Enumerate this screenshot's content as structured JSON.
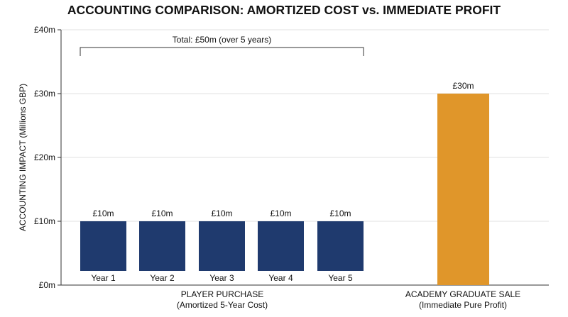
{
  "chart_data": {
    "type": "bar",
    "title": "ACCOUNTING COMPARISON: AMORTIZED COST vs. IMMEDIATE PROFIT",
    "ylabel": "ACCOUNTING IMPACT (Millions GBP)",
    "xlabel": "",
    "ylim": [
      0,
      40
    ],
    "yticks": [
      {
        "value": 0,
        "label": "£0m"
      },
      {
        "value": 10,
        "label": "£10m"
      },
      {
        "value": 20,
        "label": "£20m"
      },
      {
        "value": 30,
        "label": "£30m"
      },
      {
        "value": 40,
        "label": "£40m"
      }
    ],
    "grid": true,
    "groups": [
      {
        "label_line1": "PLAYER PURCHASE",
        "label_line2": "(Amortized 5-Year Cost)",
        "color": "#1f3a6e",
        "bars": [
          {
            "label": "Year 1",
            "value": 10,
            "value_label": "£10m"
          },
          {
            "label": "Year 2",
            "value": 10,
            "value_label": "£10m"
          },
          {
            "label": "Year 3",
            "value": 10,
            "value_label": "£10m"
          },
          {
            "label": "Year 4",
            "value": 10,
            "value_label": "£10m"
          },
          {
            "label": "Year 5",
            "value": 10,
            "value_label": "£10m"
          }
        ]
      },
      {
        "label_line1": "ACADEMY GRADUATE SALE",
        "label_line2": "(Immediate Pure Profit)",
        "color": "#e0962a",
        "bars": [
          {
            "label": "",
            "value": 30,
            "value_label": "£30m"
          }
        ]
      }
    ],
    "annotations": [
      {
        "text": "Total: £50m (over 5 years)",
        "spans": "PLAYER PURCHASE"
      }
    ]
  }
}
